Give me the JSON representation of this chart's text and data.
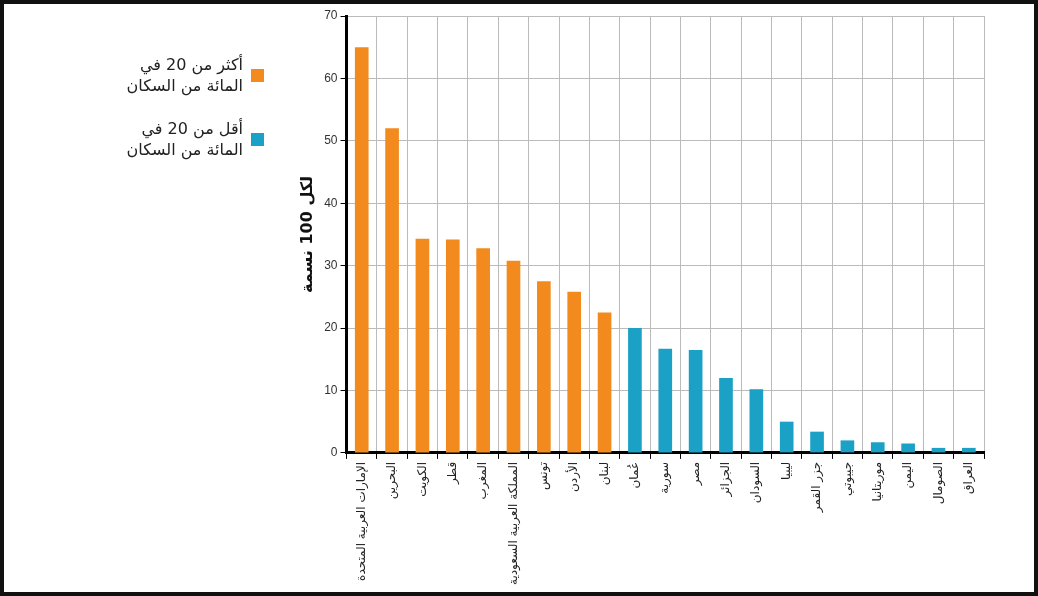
{
  "chart_data": {
    "type": "bar",
    "ylabel": "لكل 100 نسمة",
    "categories": [
      "الإمارات العربية المتحدة",
      "البحرين",
      "الكويت",
      "قطر",
      "المغرب",
      "المملكة العربية السعودية",
      "تونس",
      "الأردن",
      "لبنان",
      "عُمان",
      "سورية",
      "مصر",
      "الجزائر",
      "السودان",
      "ليبيا",
      "جزر القمر",
      "جيبوتي",
      "موريتانيا",
      "اليمن",
      "الصومال",
      "العراق"
    ],
    "series": [
      {
        "name": "أكثر من 20 في المائة من السكان",
        "color": "#f28a1e",
        "values": [
          65,
          52,
          34.3,
          34.2,
          32.8,
          30.8,
          27.5,
          25.8,
          22.5,
          null,
          null,
          null,
          null,
          null,
          null,
          null,
          null,
          null,
          null,
          null,
          null
        ]
      },
      {
        "name": "أقل من 20 في المائة من السكان",
        "color": "#1ba1c6",
        "values": [
          null,
          null,
          null,
          null,
          null,
          null,
          null,
          null,
          null,
          20,
          16.7,
          16.5,
          12,
          10.2,
          5,
          3.4,
          2,
          1.7,
          1.5,
          0.8,
          0.8
        ]
      }
    ],
    "ylim": [
      0,
      70
    ],
    "yticks": [
      0,
      10,
      20,
      30,
      40,
      50,
      60,
      70
    ],
    "grid": true,
    "legend": "left"
  }
}
